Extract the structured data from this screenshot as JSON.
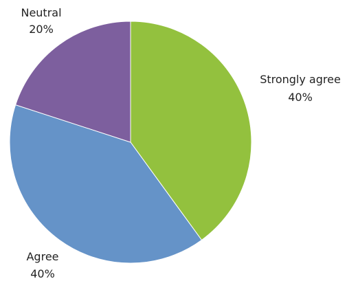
{
  "chart_data": {
    "type": "pie",
    "title": "",
    "slices": [
      {
        "name": "Strongly agree",
        "value": 40,
        "percent_label": "40%",
        "color": "#93c13e"
      },
      {
        "name": "Agree",
        "value": 40,
        "percent_label": "40%",
        "color": "#6593c8"
      },
      {
        "name": "Neutral",
        "value": 20,
        "percent_label": "20%",
        "color": "#7d5f9e"
      }
    ],
    "start_angle": "12 o'clock",
    "direction": "clockwise",
    "legend": "none"
  }
}
